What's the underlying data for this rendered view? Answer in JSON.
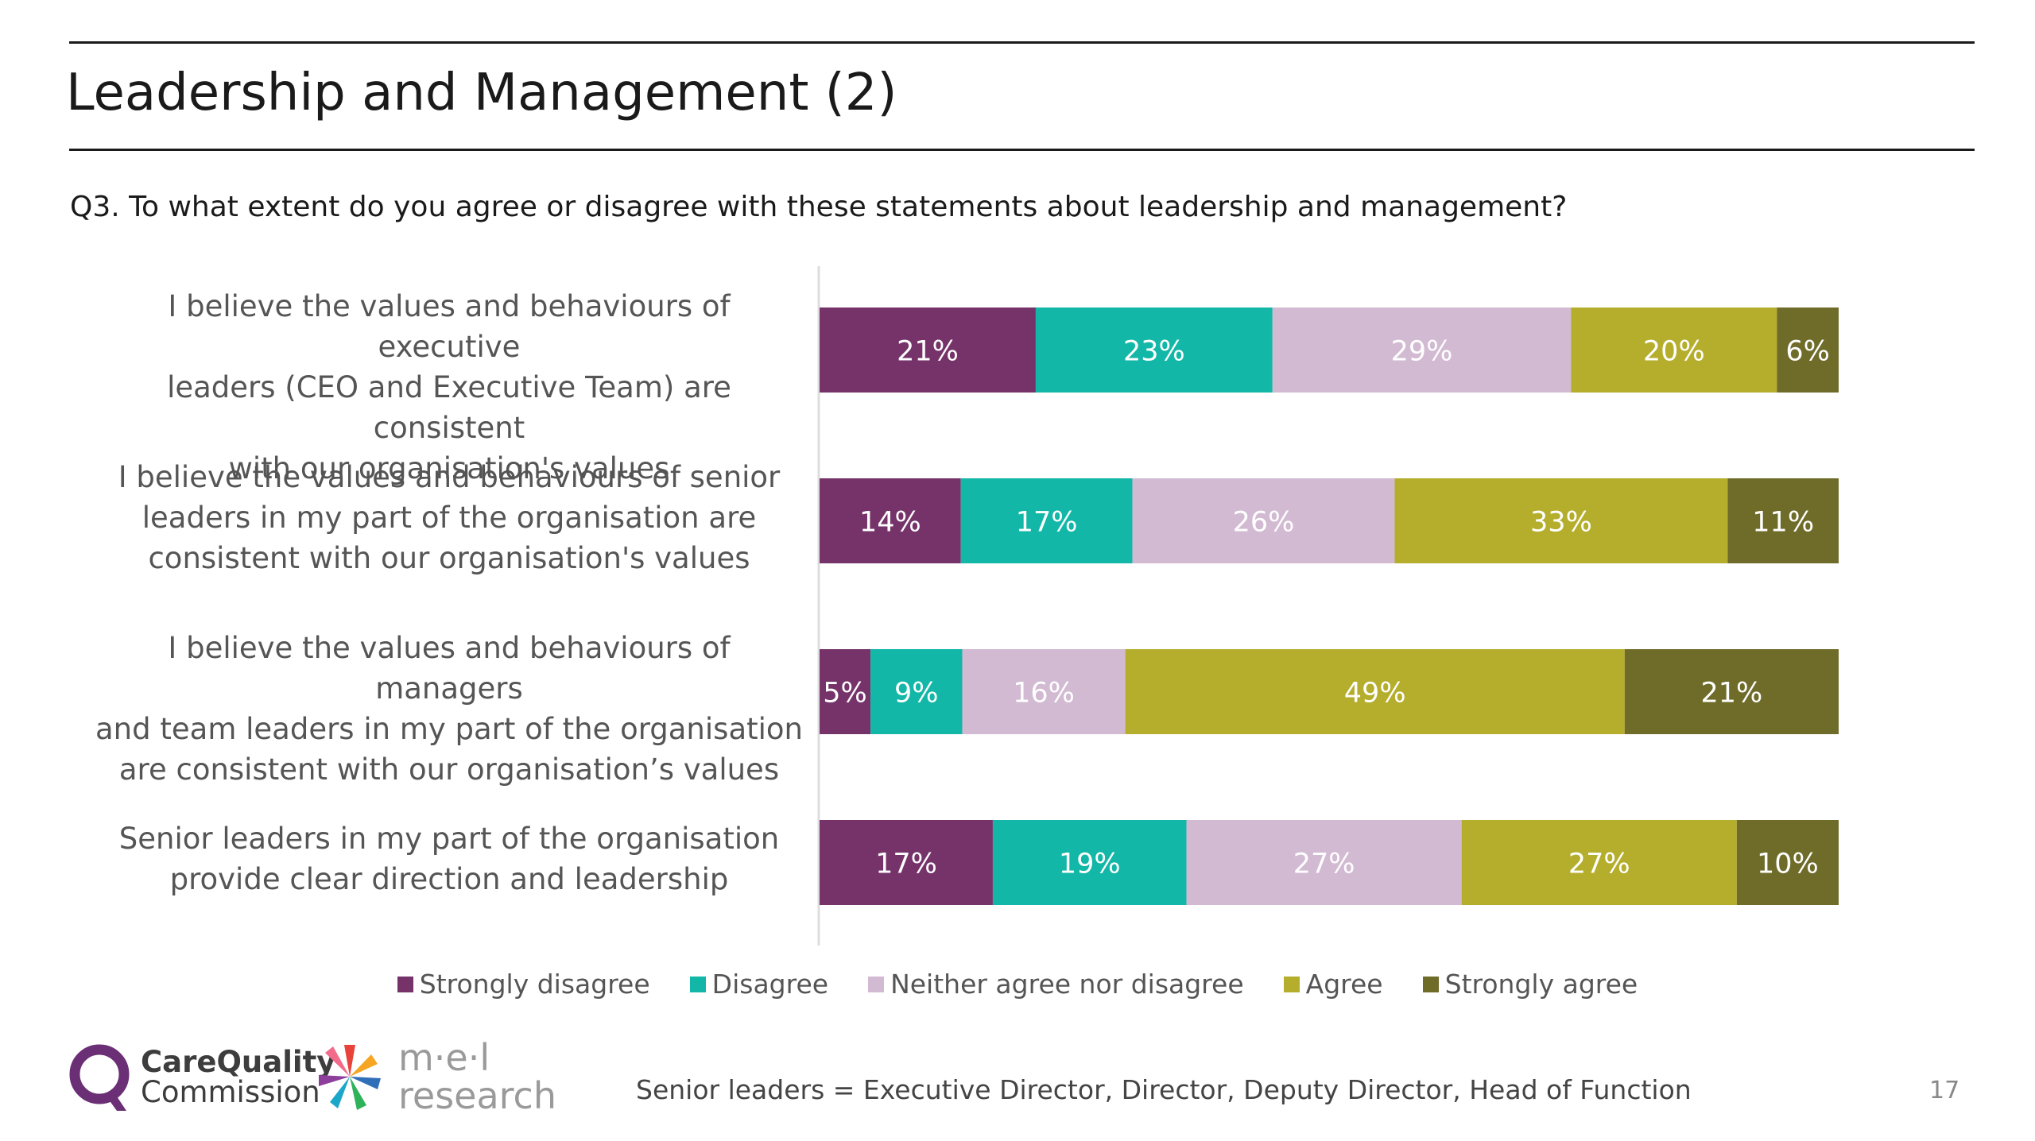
{
  "header": {
    "title": "Leadership and Management (2)"
  },
  "question": "Q3. To what extent do you agree or disagree with these statements about leadership and management?",
  "colors": {
    "strongly_disagree": "#75336a",
    "disagree": "#12b7a7",
    "neither": "#d2bad2",
    "agree": "#b5ad2c",
    "strongly_agree": "#6f6c2a",
    "rules": "#1a1a1a"
  },
  "chart_data": {
    "type": "bar",
    "orientation": "horizontal",
    "stacked": true,
    "categories": [
      "I believe the values and behaviours of executive\nleaders (CEO and Executive Team) are consistent\nwith our organisation's values",
      "I believe the values and behaviours of senior\nleaders in my part of the organisation  are\nconsistent with our organisation's values",
      "I believe the values and behaviours of managers\nand team leaders in my part of the organisation\nare consistent with our organisation’s values",
      "Senior leaders in my part of the organisation\nprovide clear direction and leadership"
    ],
    "series": [
      {
        "name": "Strongly disagree",
        "values": [
          21,
          14,
          5,
          17
        ],
        "labels": [
          "21%",
          "14%",
          "5%",
          "17%"
        ]
      },
      {
        "name": "Disagree",
        "values": [
          23,
          17,
          9,
          19
        ],
        "labels": [
          "23%",
          "17%",
          "9%",
          "19%"
        ]
      },
      {
        "name": "Neither agree nor disagree",
        "values": [
          29,
          26,
          16,
          27
        ],
        "labels": [
          "29%",
          "26%",
          "16%",
          "27%"
        ]
      },
      {
        "name": "Agree",
        "values": [
          20,
          33,
          49,
          27
        ],
        "labels": [
          "20%",
          "33%",
          "49%",
          "27%"
        ]
      },
      {
        "name": "Strongly agree",
        "values": [
          6,
          11,
          21,
          10
        ],
        "labels": [
          "6%",
          "11%",
          "21%",
          "10%"
        ]
      }
    ],
    "legend_position": "bottom",
    "grid": false
  },
  "legend": [
    {
      "label": "Strongly disagree"
    },
    {
      "label": "Disagree"
    },
    {
      "label": "Neither agree nor disagree"
    },
    {
      "label": "Agree"
    },
    {
      "label": "Strongly agree"
    }
  ],
  "footer": {
    "note": "Senior leaders = Executive Director, Director, Deputy Director, Head of Function",
    "page_number": "17",
    "cqc_logo": {
      "line1": "CareQuality",
      "line2": "Commission"
    },
    "mel_logo": {
      "line1": "m·e·l",
      "line2": "research"
    }
  }
}
